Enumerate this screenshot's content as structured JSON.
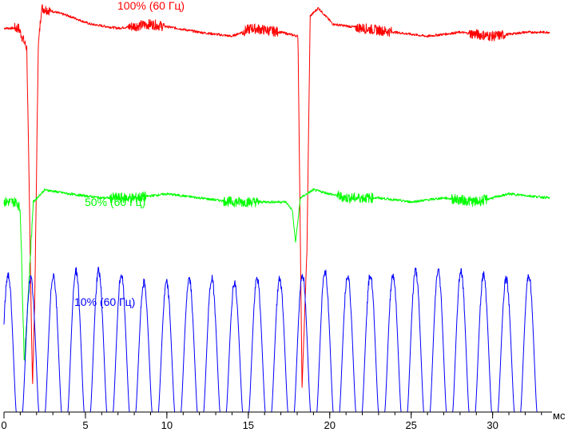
{
  "chart_data": {
    "type": "line",
    "title": "",
    "xlabel": "мс",
    "ylabel": "",
    "xlim": [
      0,
      33.5
    ],
    "x_ticks": [
      0,
      5,
      10,
      15,
      20,
      25,
      30
    ],
    "x_tick_labels": [
      "0",
      "5",
      "10",
      "15",
      "20",
      "25",
      "30"
    ],
    "minor_tick_step": 1,
    "grid": false,
    "series": [
      {
        "name": "100% (60 Гц)",
        "color": "#ff0000",
        "x": [
          0,
          0.9,
          1.4,
          1.75,
          1.9,
          2.1,
          2.3,
          4,
          5.3,
          7,
          9,
          10.6,
          12,
          14,
          15.2,
          17,
          18.05,
          18.3,
          18.6,
          18.8,
          19.3,
          20.2,
          22,
          24,
          26,
          28,
          30,
          32,
          33.5
        ],
        "values": [
          0.95,
          0.95,
          0.9,
          0.06,
          0.3,
          0.9,
          1.0,
          0.98,
          0.96,
          0.95,
          0.96,
          0.95,
          0.94,
          0.93,
          0.95,
          0.94,
          0.93,
          0.06,
          0.4,
          0.98,
          1.0,
          0.96,
          0.95,
          0.94,
          0.93,
          0.94,
          0.93,
          0.94,
          0.94
        ]
      },
      {
        "name": "50% (60 Гц)",
        "color": "#00ff00",
        "x": [
          0,
          0.8,
          1.0,
          1.25,
          1.5,
          1.8,
          2.5,
          4,
          6,
          8,
          10,
          12,
          14,
          16,
          17.3,
          17.7,
          17.9,
          18.2,
          19,
          21,
          23,
          25,
          27,
          29,
          31,
          33.5
        ],
        "values": [
          0.52,
          0.52,
          0.5,
          0.12,
          0.3,
          0.52,
          0.55,
          0.54,
          0.53,
          0.53,
          0.54,
          0.53,
          0.52,
          0.52,
          0.52,
          0.5,
          0.42,
          0.53,
          0.55,
          0.53,
          0.53,
          0.52,
          0.53,
          0.52,
          0.54,
          0.53
        ]
      },
      {
        "name": "10% (60 Гц)",
        "color": "#0000ff",
        "pulse_period": 1.39,
        "first_peak": 0.25,
        "pulse_width": 1.0,
        "pulse_count": 24,
        "baseline": 0.0,
        "peak_values": [
          0.34,
          0.33,
          0.34,
          0.35,
          0.35,
          0.34,
          0.32,
          0.32,
          0.33,
          0.33,
          0.32,
          0.33,
          0.33,
          0.34,
          0.35,
          0.34,
          0.34,
          0.34,
          0.35,
          0.35,
          0.35,
          0.34,
          0.33,
          0.34
        ],
        "notch_x": [
          1.2,
          17.8
        ],
        "notch_values": [
          0.12,
          0.1
        ]
      }
    ]
  }
}
